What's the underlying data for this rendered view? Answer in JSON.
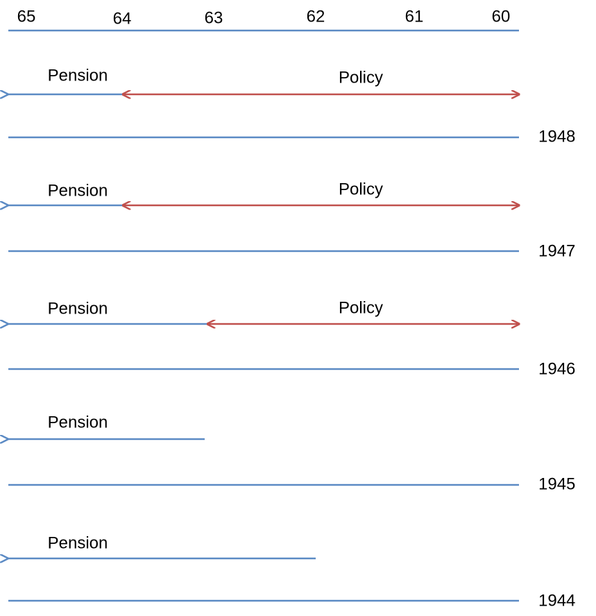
{
  "axis": {
    "labels": [
      "65",
      "64",
      "63",
      "62",
      "61",
      "60"
    ]
  },
  "rows": [
    {
      "pension": "Pension",
      "policy": "Policy",
      "year": "1948"
    },
    {
      "pension": "Pension",
      "policy": "Policy",
      "year": "1947"
    },
    {
      "pension": "Pension",
      "policy": "Policy",
      "year": "1946"
    },
    {
      "pension": "Pension",
      "year": "1945"
    },
    {
      "pension": "Pension",
      "year": "1944"
    }
  ]
}
